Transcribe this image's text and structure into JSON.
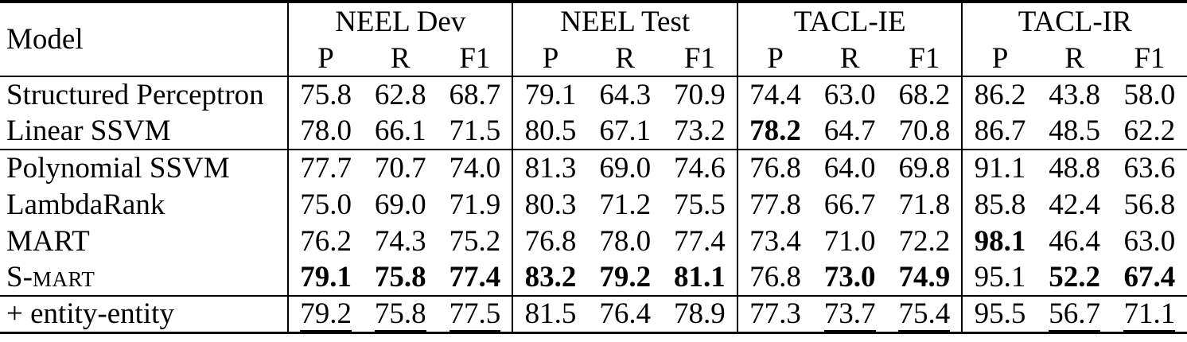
{
  "page": {
    "background": "#ffffff",
    "text_color": "#000000"
  },
  "table": {
    "model_header": "Model",
    "groups": [
      {
        "label": "NEEL Dev",
        "sub": [
          "P",
          "R",
          "F1"
        ]
      },
      {
        "label": "NEEL Test",
        "sub": [
          "P",
          "R",
          "F1"
        ]
      },
      {
        "label": "TACL-IE",
        "sub": [
          "P",
          "R",
          "F1"
        ]
      },
      {
        "label": "TACL-IR",
        "sub": [
          "P",
          "R",
          "F1"
        ]
      }
    ],
    "rows": [
      {
        "model": [
          {
            "t": "Structured Perceptron"
          }
        ],
        "section_start": false,
        "cells": [
          {
            "v": "75.8"
          },
          {
            "v": "62.8"
          },
          {
            "v": "68.7"
          },
          {
            "v": "79.1"
          },
          {
            "v": "64.3"
          },
          {
            "v": "70.9"
          },
          {
            "v": "74.4"
          },
          {
            "v": "63.0"
          },
          {
            "v": "68.2"
          },
          {
            "v": "86.2"
          },
          {
            "v": "43.8"
          },
          {
            "v": "58.0"
          }
        ]
      },
      {
        "model": [
          {
            "t": "Linear SSVM"
          }
        ],
        "section_start": false,
        "cells": [
          {
            "v": "78.0"
          },
          {
            "v": "66.1"
          },
          {
            "v": "71.5"
          },
          {
            "v": "80.5"
          },
          {
            "v": "67.1"
          },
          {
            "v": "73.2"
          },
          {
            "v": "78.2",
            "b": true
          },
          {
            "v": "64.7"
          },
          {
            "v": "70.8"
          },
          {
            "v": "86.7"
          },
          {
            "v": "48.5"
          },
          {
            "v": "62.2"
          }
        ]
      },
      {
        "model": [
          {
            "t": "Polynomial SSVM"
          }
        ],
        "section_start": true,
        "cells": [
          {
            "v": "77.7"
          },
          {
            "v": "70.7"
          },
          {
            "v": "74.0"
          },
          {
            "v": "81.3"
          },
          {
            "v": "69.0"
          },
          {
            "v": "74.6"
          },
          {
            "v": "76.8"
          },
          {
            "v": "64.0"
          },
          {
            "v": "69.8"
          },
          {
            "v": "91.1"
          },
          {
            "v": "48.8"
          },
          {
            "v": "63.6"
          }
        ]
      },
      {
        "model": [
          {
            "t": "LambdaRank"
          }
        ],
        "section_start": false,
        "cells": [
          {
            "v": "75.0"
          },
          {
            "v": "69.0"
          },
          {
            "v": "71.9"
          },
          {
            "v": "80.3"
          },
          {
            "v": "71.2"
          },
          {
            "v": "75.5"
          },
          {
            "v": "77.8"
          },
          {
            "v": "66.7"
          },
          {
            "v": "71.8"
          },
          {
            "v": "85.8"
          },
          {
            "v": "42.4"
          },
          {
            "v": "56.8"
          }
        ]
      },
      {
        "model": [
          {
            "t": "MART"
          }
        ],
        "section_start": false,
        "cells": [
          {
            "v": "76.2"
          },
          {
            "v": "74.3"
          },
          {
            "v": "75.2"
          },
          {
            "v": "76.8"
          },
          {
            "v": "78.0"
          },
          {
            "v": "77.4"
          },
          {
            "v": "73.4"
          },
          {
            "v": "71.0"
          },
          {
            "v": "72.2"
          },
          {
            "v": "98.1",
            "b": true
          },
          {
            "v": "46.4"
          },
          {
            "v": "63.0"
          }
        ]
      },
      {
        "model": [
          {
            "t": "S-"
          },
          {
            "t": "MART",
            "sc": true
          }
        ],
        "section_start": false,
        "cells": [
          {
            "v": "79.1",
            "b": true
          },
          {
            "v": "75.8",
            "b": true
          },
          {
            "v": "77.4",
            "b": true
          },
          {
            "v": "83.2",
            "b": true
          },
          {
            "v": "79.2",
            "b": true
          },
          {
            "v": "81.1",
            "b": true
          },
          {
            "v": "76.8"
          },
          {
            "v": "73.0",
            "b": true
          },
          {
            "v": "74.9",
            "b": true
          },
          {
            "v": "95.1"
          },
          {
            "v": "52.2",
            "b": true
          },
          {
            "v": "67.4",
            "b": true
          }
        ]
      },
      {
        "model": [
          {
            "t": "+ entity-entity"
          }
        ],
        "section_start": true,
        "cells": [
          {
            "v": "79.2",
            "u": true
          },
          {
            "v": "75.8",
            "u": true
          },
          {
            "v": "77.5",
            "u": true
          },
          {
            "v": "81.5"
          },
          {
            "v": "76.4"
          },
          {
            "v": "78.9"
          },
          {
            "v": "77.3"
          },
          {
            "v": "73.7",
            "u": true
          },
          {
            "v": "75.4",
            "u": true
          },
          {
            "v": "95.5"
          },
          {
            "v": "56.7",
            "u": true
          },
          {
            "v": "71.1",
            "u": true
          }
        ]
      }
    ]
  }
}
